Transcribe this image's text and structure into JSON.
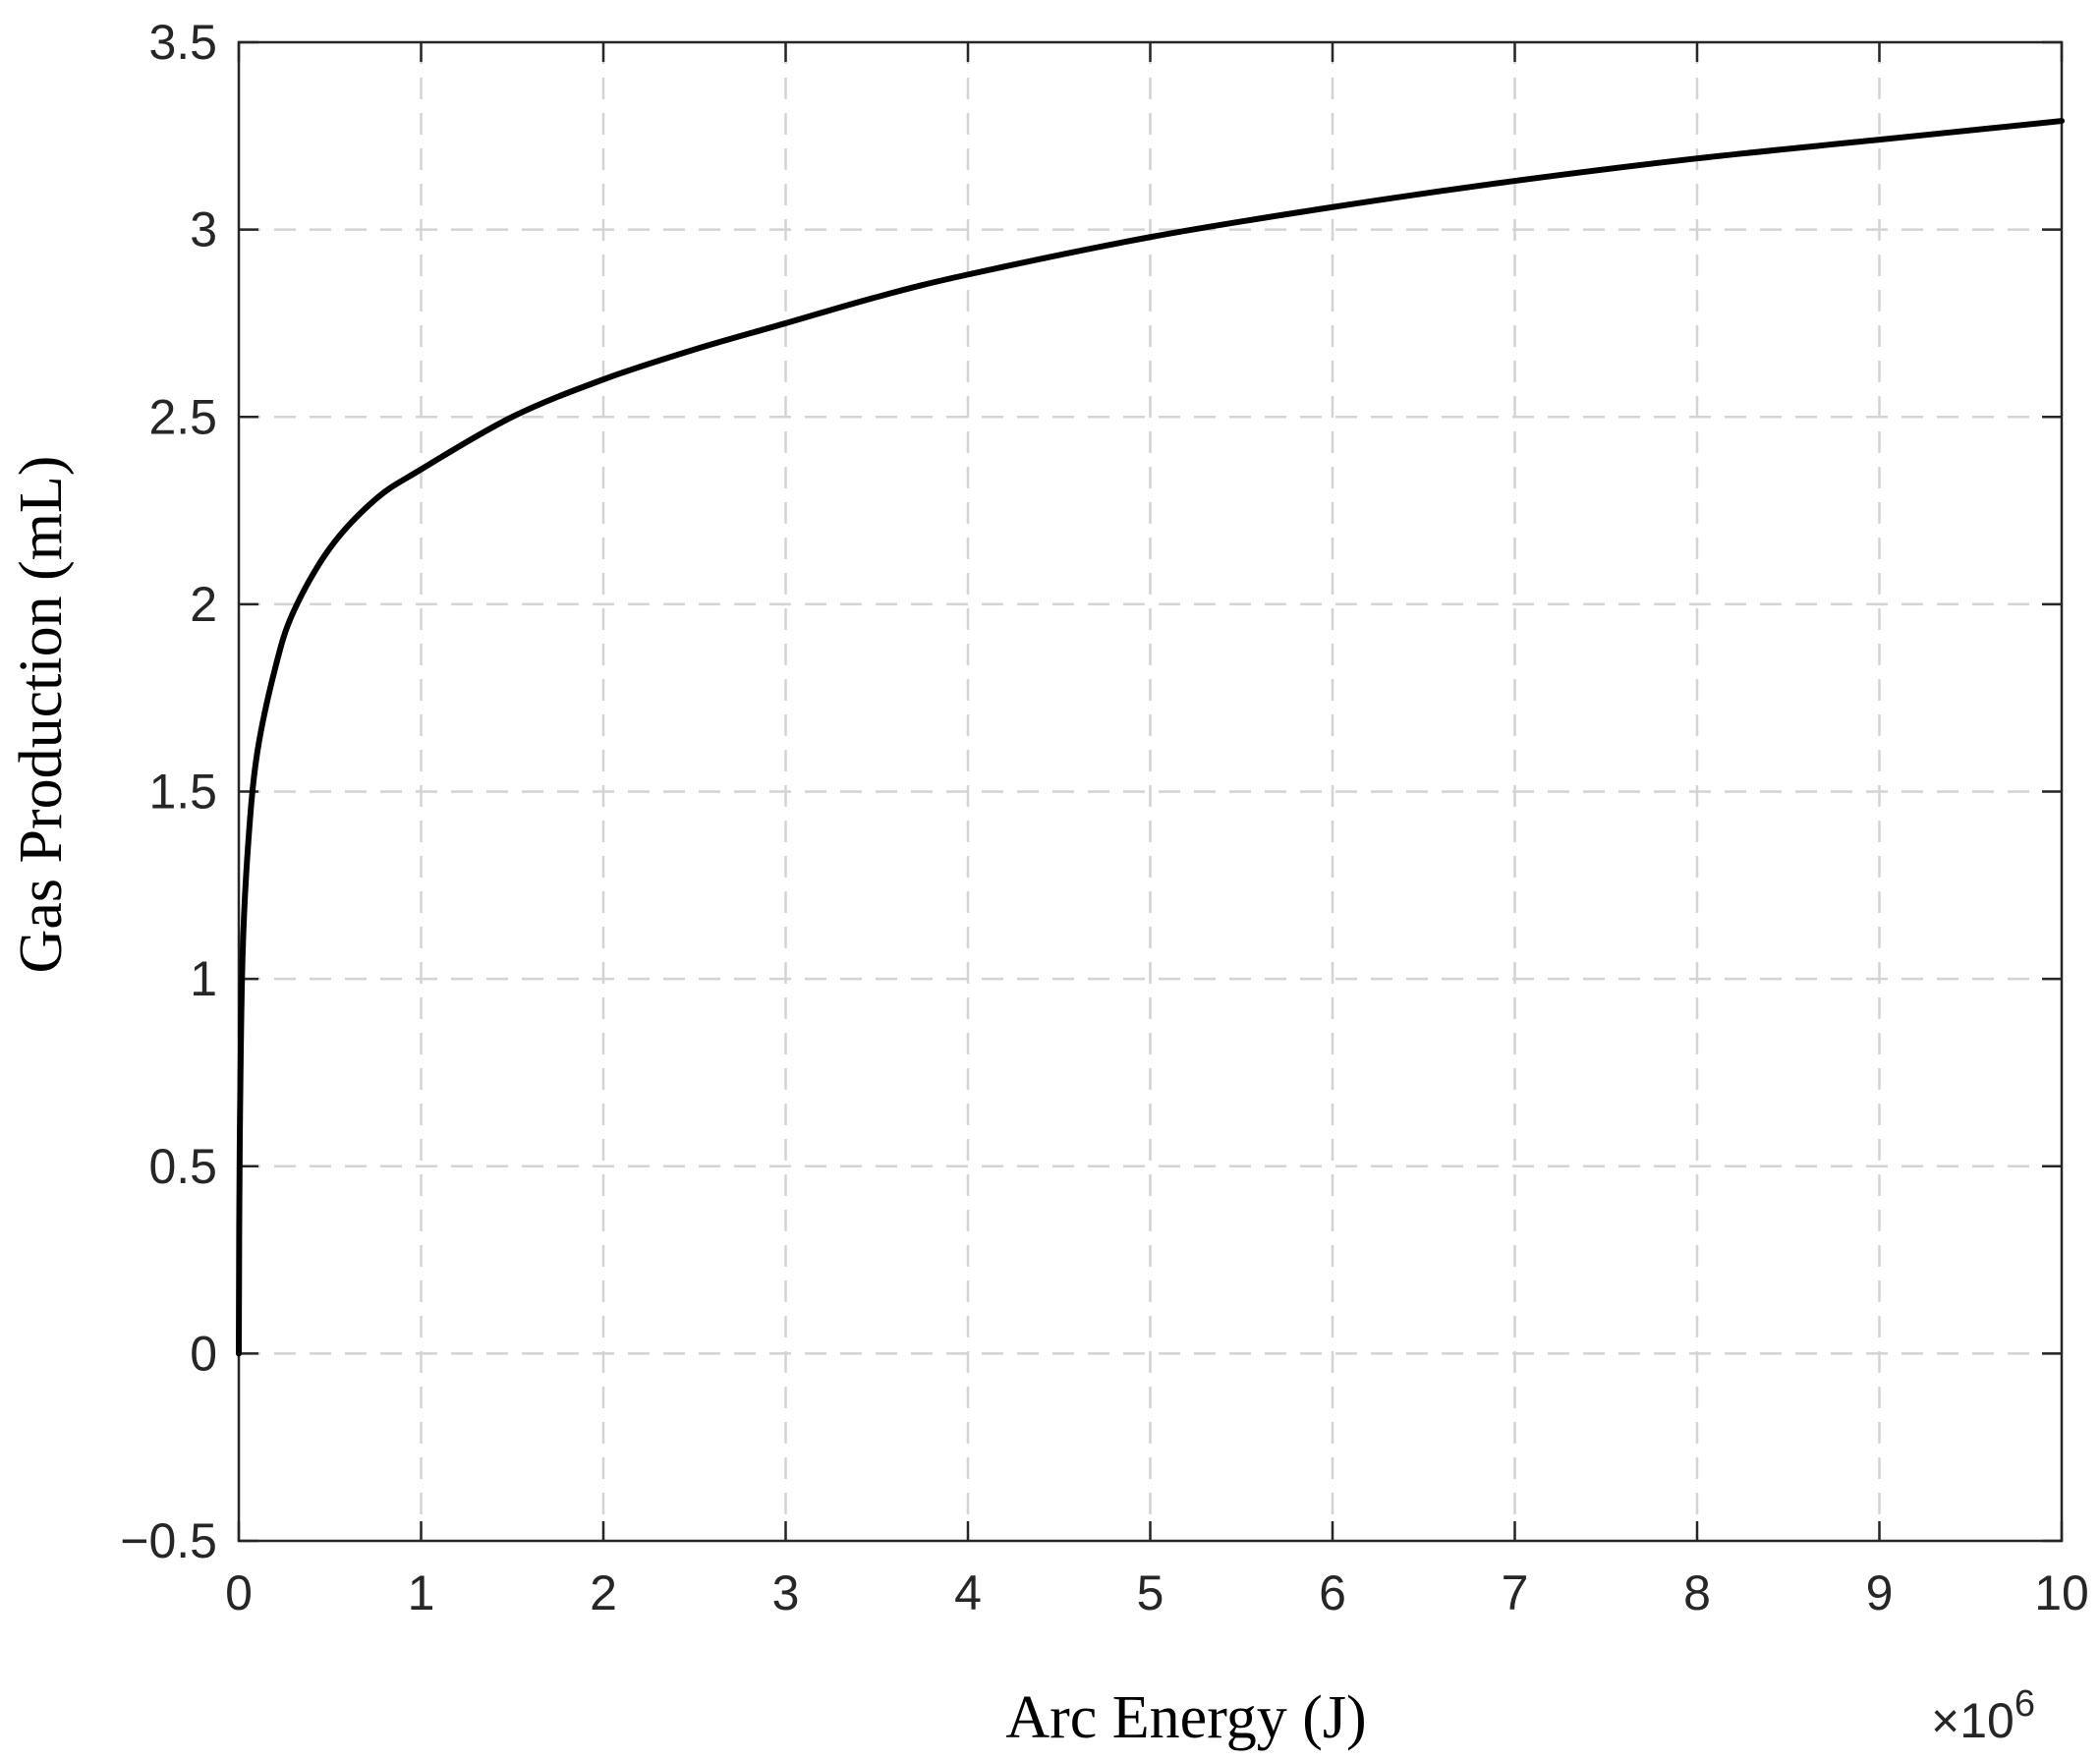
{
  "chart_data": {
    "type": "line",
    "title": "",
    "xlabel": "Arc Energy (J)",
    "ylabel": "Gas Production (mL)",
    "x_exponent_label": {
      "base": "×10",
      "power": "6"
    },
    "xlim": [
      0,
      10
    ],
    "ylim": [
      -0.5,
      3.5
    ],
    "x_scale_factor": 1000000,
    "x_ticks": [
      0,
      1,
      2,
      3,
      4,
      5,
      6,
      7,
      8,
      9,
      10
    ],
    "x_tick_labels": [
      "0",
      "1",
      "2",
      "3",
      "4",
      "5",
      "6",
      "7",
      "8",
      "9",
      "10"
    ],
    "y_ticks": [
      -0.5,
      0,
      0.5,
      1,
      1.5,
      2,
      2.5,
      3,
      3.5
    ],
    "y_tick_labels": [
      "−0.5",
      "0",
      "0.5",
      "1",
      "1.5",
      "2",
      "2.5",
      "3",
      "3.5"
    ],
    "grid": true,
    "grid_style": "dashed",
    "legend": "none",
    "series": [
      {
        "color": "#000000",
        "x": [
          0,
          0.005,
          0.02,
          0.05,
          0.1,
          0.2,
          0.3,
          0.5,
          0.75,
          1,
          1.5,
          2,
          2.5,
          3,
          3.5,
          4,
          5,
          6,
          7,
          8,
          9,
          10
        ],
        "y": [
          0,
          0.55,
          1.05,
          1.35,
          1.6,
          1.83,
          1.98,
          2.15,
          2.28,
          2.36,
          2.5,
          2.6,
          2.68,
          2.75,
          2.82,
          2.88,
          2.98,
          3.06,
          3.13,
          3.19,
          3.24,
          3.29
        ]
      }
    ]
  }
}
